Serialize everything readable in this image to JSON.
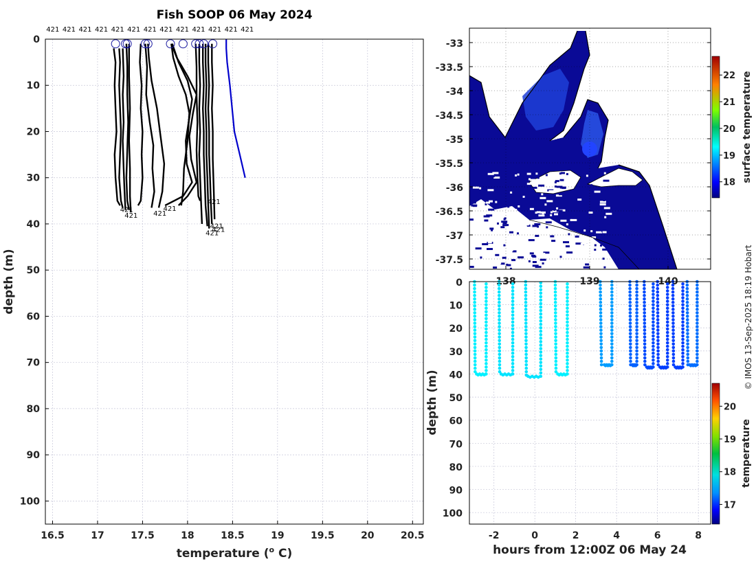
{
  "title": "Fish SOOP 06 May 2024",
  "credit": "© IMOS 13-Sep-2025 18:19 Hobart",
  "chart_data": [
    {
      "type": "line",
      "name": "temperature-depth profiles",
      "xlabel": "temperature (° C)",
      "xlabel_main": "temperature (",
      "xlabel_sup": "o",
      "xlabel_end": " C)",
      "ylabel": "depth (m)",
      "xlim": [
        16.42,
        20.62
      ],
      "ylim": [
        0,
        105
      ],
      "xticks": [
        "16.5",
        "17",
        "17.5",
        "18",
        "18.5",
        "19",
        "19.5",
        "20",
        "20.5"
      ],
      "xtick_values": [
        16.5,
        17,
        17.5,
        18,
        18.5,
        19,
        19.5,
        20,
        20.5
      ],
      "yticks": [
        "0",
        "10",
        "20",
        "30",
        "40",
        "50",
        "60",
        "70",
        "80",
        "90",
        "100"
      ],
      "ytick_values": [
        0,
        10,
        20,
        30,
        40,
        50,
        60,
        70,
        80,
        90,
        100
      ],
      "top_labels": [
        "421",
        "421",
        "421",
        "421",
        "421",
        "421",
        "421",
        "421",
        "421",
        "421",
        "421",
        "421",
        "421"
      ],
      "top_label_temps": [
        16.43,
        16.61,
        16.79,
        16.97,
        17.15,
        17.33,
        17.51,
        17.69,
        17.87,
        18.05,
        18.23,
        18.41,
        18.59
      ],
      "markers": [
        17.2,
        17.33,
        17.31,
        17.53,
        17.56,
        17.81,
        17.95,
        18.09,
        18.13,
        18.18,
        18.28
      ],
      "end_labels": [
        {
          "text": "421",
          "t": 17.25,
          "d": 36.2
        },
        {
          "text": "421",
          "t": 17.3,
          "d": 37.5
        },
        {
          "text": "421",
          "t": 17.62,
          "d": 37.0
        },
        {
          "text": "421",
          "t": 17.73,
          "d": 36.0
        },
        {
          "text": "421",
          "t": 18.22,
          "d": 34.5
        },
        {
          "text": "421",
          "t": 18.25,
          "d": 39.8
        },
        {
          "text": "421",
          "t": 18.27,
          "d": 40.5
        },
        {
          "text": "421",
          "t": 18.2,
          "d": 41.3
        }
      ],
      "series": [
        {
          "name": "p1",
          "color": "#000000",
          "t": [
            17.18,
            17.2,
            17.19,
            17.2,
            17.21,
            17.19,
            17.2,
            17.22,
            17.25
          ],
          "d": [
            2,
            5,
            10,
            15,
            20,
            25,
            30,
            35,
            36
          ]
        },
        {
          "name": "p2",
          "color": "#000000",
          "t": [
            17.24,
            17.25,
            17.24,
            17.25,
            17.26,
            17.25,
            17.24,
            17.26,
            17.28
          ],
          "d": [
            2,
            5,
            10,
            15,
            20,
            25,
            30,
            35,
            36.5
          ]
        },
        {
          "name": "p3",
          "color": "#000000",
          "t": [
            17.28,
            17.29,
            17.28,
            17.29,
            17.28,
            17.29,
            17.3,
            17.31
          ],
          "d": [
            2,
            8,
            12,
            18,
            22,
            28,
            33,
            37
          ]
        },
        {
          "name": "p4",
          "color": "#000000",
          "t": [
            17.32,
            17.33,
            17.33,
            17.34,
            17.33,
            17.32,
            17.33,
            17.35
          ],
          "d": [
            1,
            6,
            12,
            18,
            24,
            30,
            35,
            37
          ]
        },
        {
          "name": "p5",
          "color": "#000000",
          "t": [
            17.35,
            17.35,
            17.36,
            17.35,
            17.36,
            17.36,
            17.37
          ],
          "d": [
            1,
            8,
            15,
            22,
            28,
            34,
            37.5
          ]
        },
        {
          "name": "p6",
          "color": "#000000",
          "t": [
            17.48,
            17.47,
            17.49,
            17.48,
            17.5,
            17.49,
            17.5,
            17.48,
            17.45
          ],
          "d": [
            1,
            5,
            10,
            15,
            20,
            25,
            30,
            35,
            36
          ]
        },
        {
          "name": "p7",
          "color": "#000000",
          "t": [
            17.53,
            17.55,
            17.54,
            17.58,
            17.62,
            17.61,
            17.63,
            17.6
          ],
          "d": [
            1,
            6,
            12,
            18,
            23,
            28,
            33,
            36.5
          ]
        },
        {
          "name": "p8",
          "color": "#000000",
          "t": [
            17.56,
            17.57,
            17.6,
            17.66,
            17.7,
            17.74,
            17.72,
            17.68
          ],
          "d": [
            1,
            4,
            9,
            15,
            21,
            27,
            33,
            36.5
          ]
        },
        {
          "name": "p9",
          "color": "#000000",
          "t": [
            17.82,
            17.84,
            17.9,
            17.98,
            18.02,
            18.0,
            17.96,
            17.95,
            17.93
          ],
          "d": [
            1,
            4,
            8,
            12,
            16,
            22,
            28,
            33,
            36
          ]
        },
        {
          "name": "p10",
          "color": "#000000",
          "t": [
            17.83,
            17.9,
            18.0,
            18.05,
            18.02,
            17.98,
            17.99,
            18.05,
            17.95,
            17.75
          ],
          "d": [
            1,
            5,
            9,
            13,
            17,
            22,
            27,
            31,
            34,
            36
          ]
        },
        {
          "name": "p11",
          "color": "#000000",
          "t": [
            17.82,
            17.88,
            18.0,
            18.1,
            18.06,
            18.02,
            18.04,
            18.1,
            18.0,
            17.9
          ],
          "d": [
            1,
            4,
            8,
            12,
            16,
            21,
            26,
            31,
            34,
            36
          ]
        },
        {
          "name": "p12",
          "color": "#000000",
          "t": [
            18.09,
            18.1,
            18.1,
            18.11,
            18.1,
            18.11,
            18.12,
            18.14
          ],
          "d": [
            1,
            6,
            12,
            18,
            24,
            30,
            34,
            35
          ]
        },
        {
          "name": "p13",
          "color": "#000000",
          "t": [
            18.13,
            18.13,
            18.14,
            18.13,
            18.14,
            18.13,
            18.14,
            18.15,
            18.16
          ],
          "d": [
            1,
            5,
            10,
            15,
            20,
            25,
            30,
            35,
            40
          ]
        },
        {
          "name": "p14",
          "color": "#000000",
          "t": [
            18.17,
            18.17,
            18.18,
            18.17,
            18.18,
            18.18,
            18.19,
            18.2,
            18.22
          ],
          "d": [
            1,
            5,
            10,
            15,
            20,
            25,
            30,
            36,
            40.5
          ]
        },
        {
          "name": "p15",
          "color": "#000000",
          "t": [
            18.2,
            18.2,
            18.21,
            18.2,
            18.21,
            18.21,
            18.22,
            18.23,
            18.24
          ],
          "d": [
            1,
            5,
            10,
            15,
            20,
            25,
            30,
            36,
            41
          ]
        },
        {
          "name": "p16",
          "color": "#000000",
          "t": [
            18.23,
            18.23,
            18.24,
            18.23,
            18.24,
            18.24,
            18.25,
            18.26,
            18.27
          ],
          "d": [
            1,
            5,
            10,
            15,
            20,
            25,
            30,
            36,
            40
          ]
        },
        {
          "name": "p17",
          "color": "#000000",
          "t": [
            18.27,
            18.27,
            18.28,
            18.27,
            18.28,
            18.28,
            18.29,
            18.3
          ],
          "d": [
            1,
            5,
            10,
            15,
            20,
            26,
            32,
            39
          ]
        },
        {
          "name": "current",
          "color": "#0000cc",
          "t": [
            18.43,
            18.43,
            18.44,
            18.47,
            18.52,
            18.58,
            18.64
          ],
          "d": [
            0,
            2,
            5,
            10,
            20,
            25,
            30
          ]
        }
      ]
    },
    {
      "type": "heatmap",
      "name": "surface temperature map",
      "yticks": [
        "-33",
        "-33.5",
        "-34",
        "-34.5",
        "-35",
        "-35.5",
        "-36",
        "-36.5",
        "-37",
        "-37.5"
      ],
      "xticks": [
        "138",
        "139",
        "140"
      ],
      "colorbar_label": "surface temperature",
      "colorbar_ticks": [
        "18",
        "19",
        "20",
        "21",
        "22"
      ],
      "colorbar_range": [
        17.4,
        22.7
      ]
    },
    {
      "type": "scatter",
      "name": "depth-time section",
      "xlabel": "hours from 12:00Z 06 May 24",
      "ylabel": "depth (m)",
      "xlim": [
        -3.2,
        8.6
      ],
      "ylim": [
        0,
        105
      ],
      "xticks": [
        "-2",
        "0",
        "2",
        "4",
        "6",
        "8"
      ],
      "xtick_values": [
        -2,
        0,
        2,
        4,
        6,
        8
      ],
      "yticks": [
        "0",
        "10",
        "20",
        "30",
        "40",
        "50",
        "60",
        "70",
        "80",
        "90",
        "100"
      ],
      "ytick_values": [
        0,
        10,
        20,
        30,
        40,
        50,
        60,
        70,
        80,
        90,
        100
      ],
      "colorbar_label": "temperature",
      "colorbar_ticks": [
        "17",
        "18",
        "19",
        "20"
      ],
      "colorbar_range": [
        16.4,
        20.7
      ],
      "profiles": [
        {
          "t0": -2.95,
          "dur": 0.1,
          "maxd": 40,
          "temp": 17.95,
          "gap": 0.45
        },
        {
          "t0": -1.75,
          "dur": 0.1,
          "maxd": 40,
          "temp": 17.9,
          "gap": 0.55
        },
        {
          "t0": -0.45,
          "dur": 0.12,
          "maxd": 41,
          "temp": 17.9,
          "gap": 0.6
        },
        {
          "t0": 1.0,
          "dur": 0.12,
          "maxd": 40,
          "temp": 17.95,
          "gap": 0.45
        },
        {
          "t0": 3.2,
          "dur": 0.2,
          "maxd": 36,
          "temp": 17.6,
          "gap": 0.35
        },
        {
          "t0": 4.65,
          "dur": 0.12,
          "maxd": 36,
          "temp": 17.35,
          "gap": 0.2
        },
        {
          "t0": 5.35,
          "dur": 0.12,
          "maxd": 37,
          "temp": 17.25,
          "gap": 0.3
        },
        {
          "t0": 6.0,
          "dur": 0.12,
          "maxd": 37,
          "temp": 17.2,
          "gap": 0.35
        },
        {
          "t0": 6.75,
          "dur": 0.12,
          "maxd": 37,
          "temp": 17.2,
          "gap": 0.35
        },
        {
          "t0": 7.45,
          "dur": 0.12,
          "maxd": 36,
          "temp": 17.4,
          "gap": 0.35
        }
      ]
    }
  ]
}
